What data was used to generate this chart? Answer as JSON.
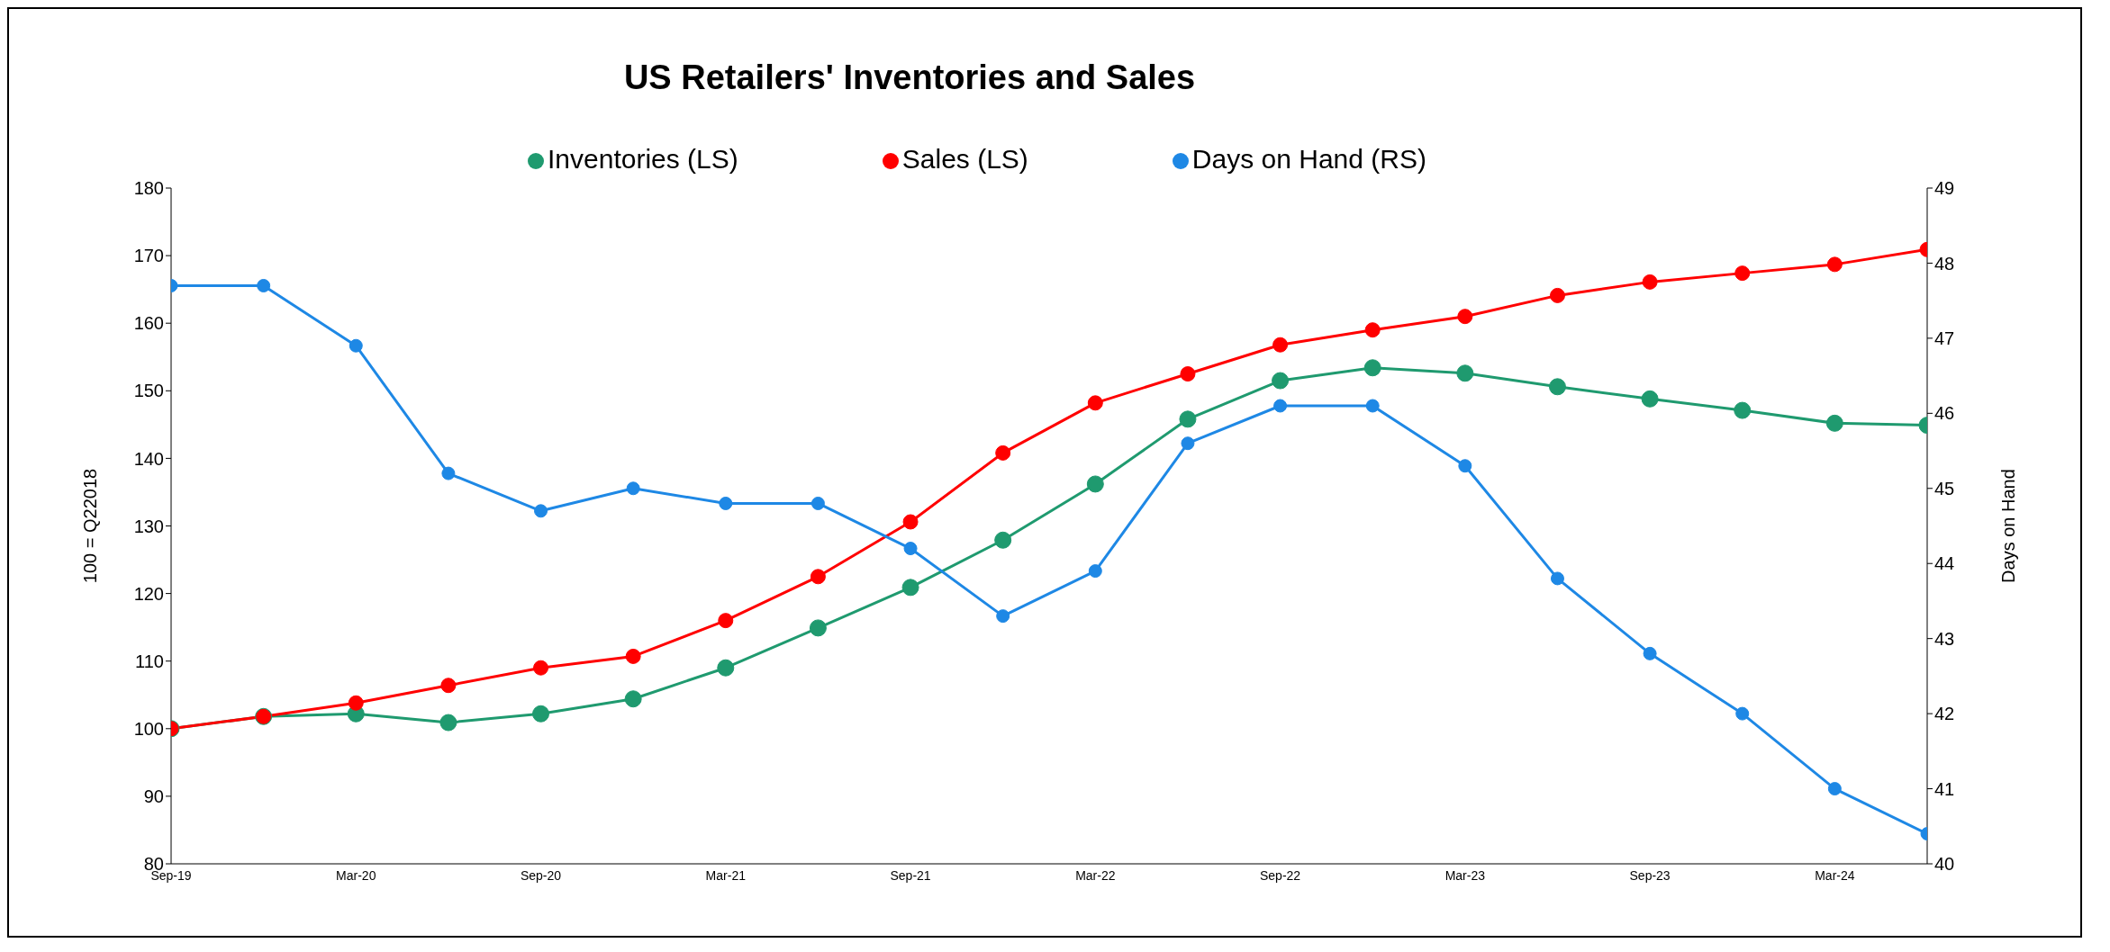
{
  "chart_data": {
    "type": "line",
    "title": "US Retailers' Inventories and Sales",
    "ylabel": "100 = Q22018",
    "y2label": "Days on Hand",
    "categories": [
      "Sep-19",
      null,
      "Mar-20",
      null,
      "Sep-20",
      null,
      "Mar-21",
      null,
      "Sep-21",
      null,
      "Mar-22",
      null,
      "Sep-22",
      null,
      "Mar-23",
      null,
      "Sep-23",
      null,
      "Mar-24",
      null
    ],
    "series": [
      {
        "name": "Inventories (LS)",
        "color": "#1f9a6f",
        "values": [
          100,
          101.8,
          102.2,
          100.9,
          102.2,
          104.4,
          109.0,
          114.9,
          120.9,
          127.9,
          136.2,
          145.8,
          151.5,
          153.4,
          152.6,
          150.6,
          148.8,
          147.1,
          145.2,
          144.9
        ]
      },
      {
        "name": "Sales (LS)",
        "color": "#ff0000",
        "values": [
          100,
          101.8,
          103.8,
          106.4,
          109.0,
          110.7,
          116.0,
          122.5,
          130.6,
          140.8,
          148.2,
          152.5,
          156.8,
          159.0,
          161.0,
          164.1,
          166.1,
          167.4,
          168.7,
          170.9
        ]
      },
      {
        "name": "Days on Hand (RS)",
        "color": "#1e88e5",
        "axis": "y2",
        "values": [
          47.7,
          47.7,
          46.9,
          45.2,
          44.7,
          45.0,
          44.8,
          44.8,
          44.2,
          43.3,
          43.9,
          45.6,
          46.1,
          46.1,
          45.3,
          43.8,
          42.8,
          42.0,
          41.0,
          40.4
        ]
      }
    ],
    "ylim": [
      80,
      180
    ],
    "yticks": [
      80,
      90,
      100,
      110,
      120,
      130,
      140,
      150,
      160,
      170,
      180
    ],
    "y2lim": [
      40,
      49
    ],
    "y2ticks": [
      40,
      41,
      42,
      43,
      44,
      45,
      46,
      47,
      48,
      49
    ],
    "legend": "top",
    "grid": false,
    "marker": "circle",
    "line_style": "solid"
  }
}
